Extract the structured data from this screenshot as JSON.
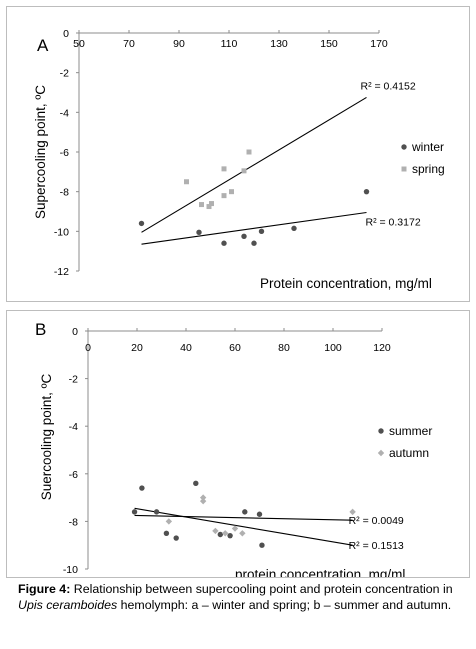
{
  "chart_data": [
    {
      "type": "scatter",
      "panel_label": "A",
      "title": "",
      "xlabel": "Protein concentration, mg/ml",
      "ylabel": "Supercooling point, ºC",
      "xlim": [
        50,
        170
      ],
      "ylim": [
        -12,
        0
      ],
      "x_ticks": [
        "50",
        "70",
        "90",
        "110",
        "130",
        "150",
        "170"
      ],
      "y_ticks": [
        "0",
        "-2",
        "-4",
        "-6",
        "-8",
        "-10",
        "-12"
      ],
      "legend_position": "right",
      "series": [
        {
          "name": "winter",
          "color": "#505050",
          "marker": "circle",
          "points": [
            [
              75,
              -9.6
            ],
            [
              98,
              -10.05
            ],
            [
              108,
              -10.6
            ],
            [
              116,
              -10.25
            ],
            [
              120,
              -10.6
            ],
            [
              123,
              -10.0
            ],
            [
              136,
              -9.85
            ],
            [
              165,
              -8.0
            ]
          ]
        },
        {
          "name": "spring",
          "color": "#b0b0b0",
          "marker": "square",
          "points": [
            [
              93,
              -7.5
            ],
            [
              99,
              -8.65
            ],
            [
              102,
              -8.75
            ],
            [
              103,
              -8.6
            ],
            [
              108,
              -8.2
            ],
            [
              108,
              -6.85
            ],
            [
              111,
              -8.0
            ],
            [
              116,
              -6.95
            ],
            [
              118,
              -6.0
            ]
          ]
        }
      ],
      "trendlines": [
        {
          "series": "spring",
          "x": [
            75,
            165
          ],
          "y": [
            -10.05,
            -3.25
          ],
          "label": "R² = 0.4152"
        },
        {
          "series": "winter",
          "x": [
            75,
            165
          ],
          "y": [
            -10.65,
            -9.05
          ],
          "label": "R² = 0.3172"
        }
      ]
    },
    {
      "type": "scatter",
      "panel_label": "B",
      "title": "",
      "xlabel": "protein concentration, mg/ml",
      "ylabel": "Suercooling point, ºC",
      "xlim": [
        0,
        120
      ],
      "ylim": [
        -10,
        0
      ],
      "x_ticks": [
        "0",
        "20",
        "40",
        "60",
        "80",
        "100",
        "120"
      ],
      "y_ticks": [
        "0",
        "-2",
        "-4",
        "-6",
        "-8",
        "-10"
      ],
      "legend_position": "right",
      "series": [
        {
          "name": "summer",
          "color": "#505050",
          "marker": "circle",
          "points": [
            [
              19,
              -7.6
            ],
            [
              22,
              -6.6
            ],
            [
              28,
              -7.6
            ],
            [
              32,
              -8.5
            ],
            [
              36,
              -8.7
            ],
            [
              44,
              -6.4
            ],
            [
              54,
              -8.55
            ],
            [
              58,
              -8.6
            ],
            [
              64,
              -7.6
            ],
            [
              70,
              -7.7
            ],
            [
              71,
              -9.0
            ]
          ]
        },
        {
          "name": "autumn",
          "color": "#b0b0b0",
          "marker": "diamond",
          "points": [
            [
              33,
              -8.0
            ],
            [
              47,
              -7.0
            ],
            [
              47,
              -7.15
            ],
            [
              52,
              -8.4
            ],
            [
              56,
              -8.5
            ],
            [
              60,
              -8.3
            ],
            [
              63,
              -8.5
            ],
            [
              108,
              -7.6
            ]
          ]
        }
      ],
      "trendlines": [
        {
          "series": "autumn",
          "x": [
            19,
            108
          ],
          "y": [
            -7.75,
            -7.95
          ],
          "label": "R² = 0.0049"
        },
        {
          "series": "summer",
          "x": [
            19,
            108
          ],
          "y": [
            -7.45,
            -9.0
          ],
          "label": "R² = 0.1513"
        }
      ]
    }
  ],
  "caption": {
    "figure_label": "Figure 4:",
    "text_before": " Relationship between supercooling point and protein concentration in ",
    "species": "Upis ceramboides",
    "text_after": " hemolymph: a – winter and spring; b – summer and autumn."
  }
}
